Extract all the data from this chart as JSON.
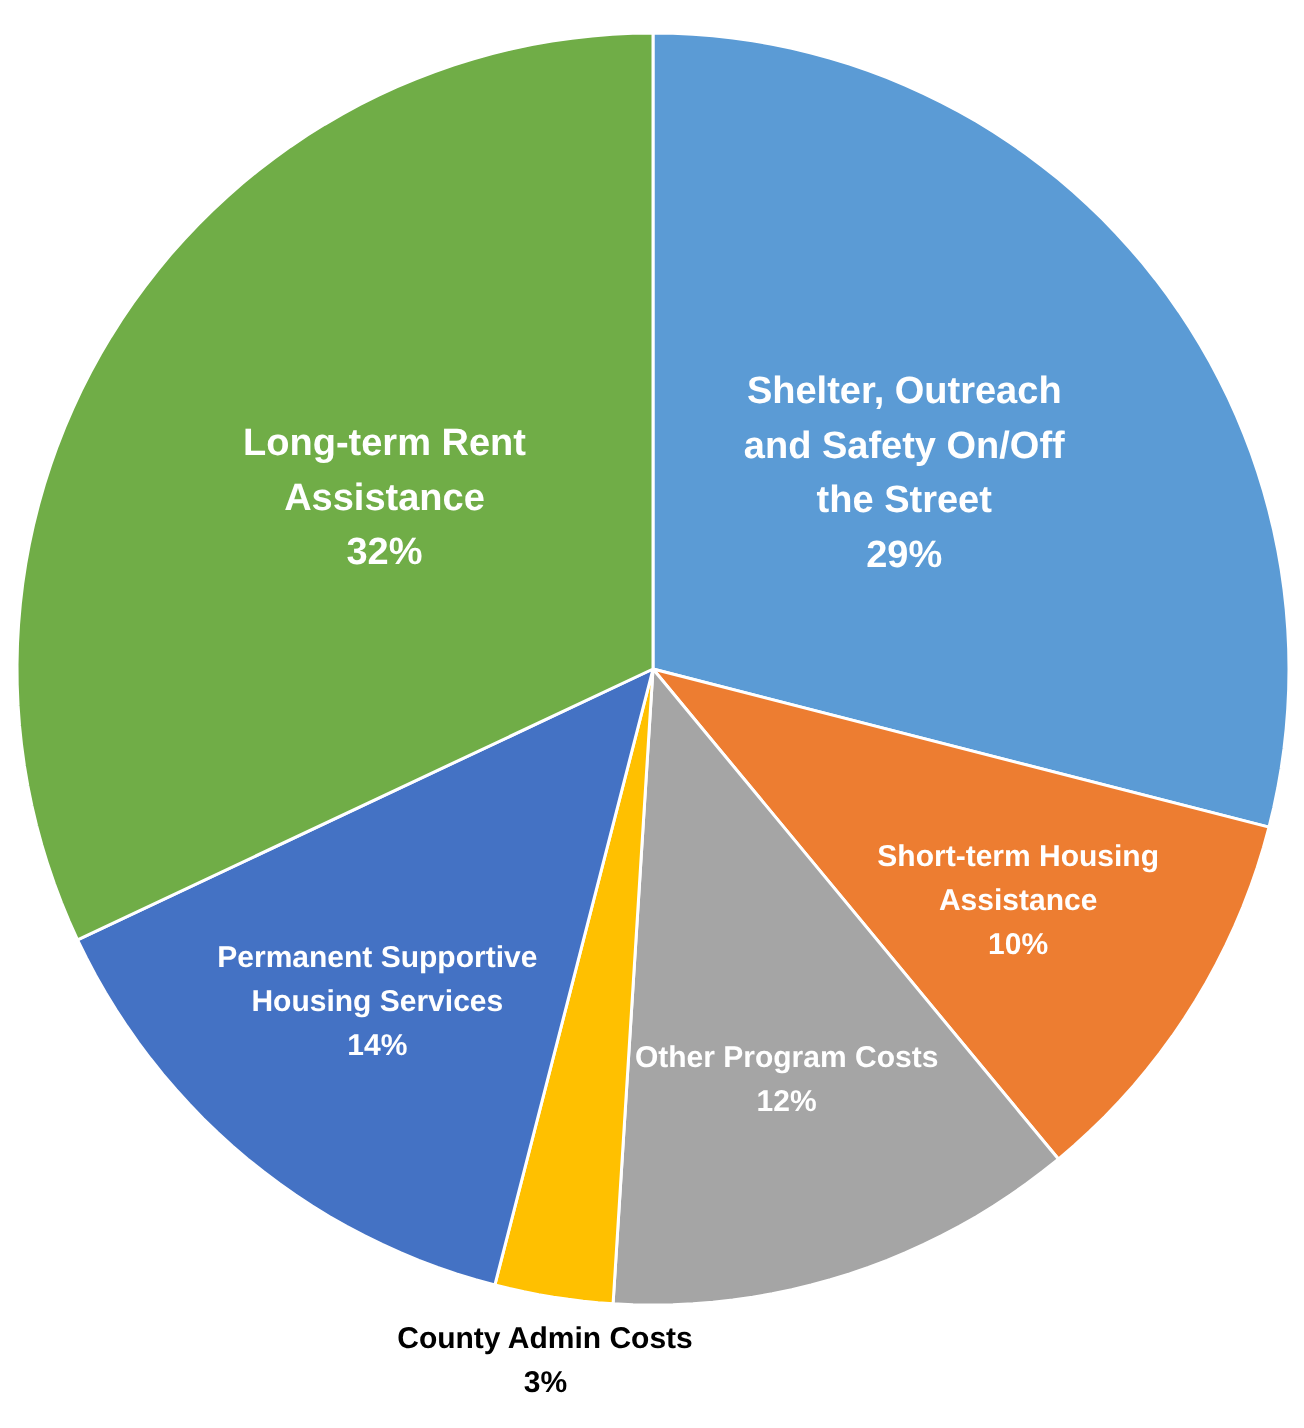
{
  "chart_data": {
    "type": "pie",
    "categories": [
      "Shelter, Outreach and Safety On/Off the Street",
      "Short-term Housing Assistance",
      "Other Program Costs",
      "County Admin Costs",
      "Permanent Supportive Housing Services",
      "Long-term Rent Assistance"
    ],
    "values": [
      29,
      10,
      12,
      3,
      14,
      32
    ],
    "value_labels": [
      "29%",
      "10%",
      "12%",
      "3%",
      "14%",
      "32%"
    ],
    "colors": [
      "#5b9bd5",
      "#ed7d31",
      "#a5a5a5",
      "#ffc000",
      "#4472c4",
      "#70ad47"
    ]
  }
}
